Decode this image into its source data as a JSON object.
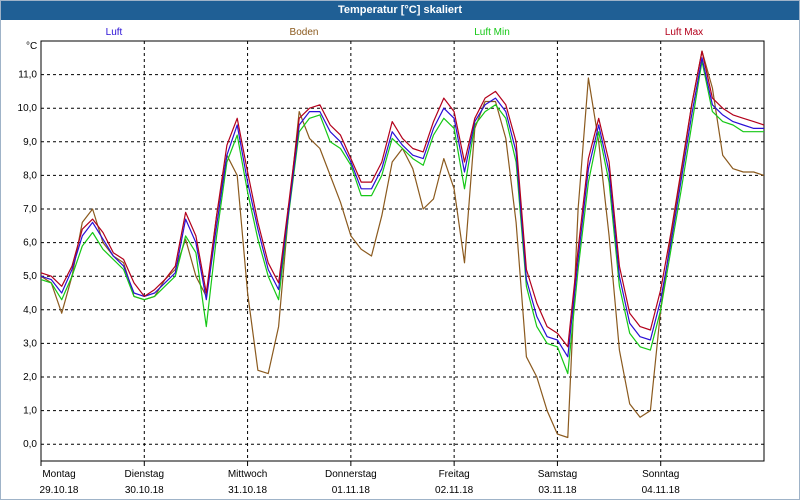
{
  "window": {
    "title": "Temperatur [°C] skaliert"
  },
  "colors": {
    "luft": "#2a0fd6",
    "boden": "#8b5a1e",
    "luft_min": "#16c816",
    "luft_max": "#b3001b",
    "grid": "#000000",
    "title_bg": "#1f5f95"
  },
  "chart_data": {
    "type": "line",
    "title": "Temperatur [°C] skaliert",
    "ylabel": "°C",
    "ylim": [
      -0.5,
      12.0
    ],
    "yticks": [
      0.0,
      1.0,
      2.0,
      3.0,
      4.0,
      5.0,
      6.0,
      7.0,
      8.0,
      9.0,
      10.0,
      11.0
    ],
    "ytick_labels": [
      "0,0",
      "1,0",
      "2,0",
      "3,0",
      "4,0",
      "5,0",
      "6,0",
      "7,0",
      "8,0",
      "9,0",
      "10,0",
      "11,0"
    ],
    "xlim": [
      0,
      7
    ],
    "days": [
      {
        "name": "Montag",
        "date": "29.10.18"
      },
      {
        "name": "Dienstag",
        "date": "30.10.18"
      },
      {
        "name": "Mittwoch",
        "date": "31.10.18"
      },
      {
        "name": "Donnerstag",
        "date": "01.11.18"
      },
      {
        "name": "Freitag",
        "date": "02.11.18"
      },
      {
        "name": "Samstag",
        "date": "03.11.18"
      },
      {
        "name": "Sonntag",
        "date": "04.11.18"
      }
    ],
    "grid": true,
    "legend_position": "top",
    "x": [
      0.0,
      0.1,
      0.2,
      0.3,
      0.4,
      0.5,
      0.6,
      0.7,
      0.8,
      0.9,
      1.0,
      1.1,
      1.2,
      1.3,
      1.4,
      1.5,
      1.6,
      1.7,
      1.8,
      1.9,
      2.0,
      2.1,
      2.2,
      2.3,
      2.4,
      2.5,
      2.6,
      2.7,
      2.8,
      2.9,
      3.0,
      3.1,
      3.2,
      3.3,
      3.4,
      3.5,
      3.6,
      3.7,
      3.8,
      3.9,
      4.0,
      4.1,
      4.2,
      4.3,
      4.4,
      4.5,
      4.6,
      4.7,
      4.8,
      4.9,
      5.0,
      5.1,
      5.2,
      5.3,
      5.4,
      5.5,
      5.6,
      5.7,
      5.8,
      5.9,
      6.0,
      6.1,
      6.2,
      6.3,
      6.4,
      6.5,
      6.6,
      6.7,
      6.8,
      6.9,
      7.0
    ],
    "series": [
      {
        "name": "Luft",
        "values": [
          5.0,
          4.9,
          4.5,
          5.2,
          6.2,
          6.6,
          6.1,
          5.6,
          5.3,
          4.5,
          4.4,
          4.5,
          4.8,
          5.1,
          6.7,
          6.0,
          4.3,
          6.5,
          8.6,
          9.5,
          7.8,
          6.4,
          5.2,
          4.6,
          7.0,
          9.5,
          9.9,
          9.9,
          9.3,
          9.0,
          8.4,
          7.6,
          7.6,
          8.2,
          9.3,
          8.9,
          8.6,
          8.5,
          9.4,
          10.0,
          9.7,
          8.1,
          9.6,
          10.1,
          10.3,
          9.9,
          8.7,
          4.9,
          3.8,
          3.2,
          3.1,
          2.6,
          5.5,
          8.2,
          9.5,
          8.1,
          5.0,
          3.6,
          3.2,
          3.1,
          4.3,
          6.0,
          7.9,
          9.8,
          11.5,
          10.1,
          9.8,
          9.6,
          9.5,
          9.4,
          9.4
        ]
      },
      {
        "name": "Boden",
        "values": [
          5.0,
          4.8,
          3.9,
          5.0,
          6.6,
          7.0,
          6.0,
          5.6,
          5.4,
          4.4,
          4.3,
          4.4,
          4.9,
          5.2,
          6.1,
          5.0,
          4.4,
          6.8,
          8.6,
          8.0,
          4.5,
          2.2,
          2.1,
          3.5,
          7.0,
          9.9,
          9.1,
          8.8,
          8.0,
          7.2,
          6.2,
          5.8,
          5.6,
          6.8,
          8.4,
          8.8,
          8.2,
          7.0,
          7.3,
          8.5,
          7.6,
          5.4,
          9.4,
          10.2,
          10.2,
          9.1,
          6.6,
          2.6,
          2.0,
          1.0,
          0.3,
          0.2,
          7.0,
          10.9,
          9.0,
          6.2,
          2.8,
          1.2,
          0.8,
          1.0,
          4.0,
          6.2,
          8.1,
          10.1,
          11.7,
          10.6,
          8.6,
          8.2,
          8.1,
          8.1,
          8.0
        ]
      },
      {
        "name": "Luft Min",
        "values": [
          4.9,
          4.8,
          4.3,
          5.0,
          5.9,
          6.3,
          5.8,
          5.5,
          5.2,
          4.4,
          4.3,
          4.4,
          4.7,
          5.0,
          6.2,
          5.7,
          3.5,
          6.2,
          8.4,
          9.2,
          7.5,
          6.1,
          5.0,
          4.3,
          6.9,
          9.3,
          9.7,
          9.8,
          9.0,
          8.8,
          8.3,
          7.4,
          7.4,
          8.0,
          9.1,
          8.8,
          8.5,
          8.3,
          9.2,
          9.7,
          9.4,
          7.6,
          9.5,
          9.9,
          10.1,
          9.7,
          8.4,
          4.7,
          3.5,
          3.0,
          2.9,
          2.1,
          5.2,
          7.8,
          9.3,
          7.8,
          4.7,
          3.3,
          2.9,
          2.8,
          4.0,
          5.8,
          7.6,
          9.5,
          11.4,
          9.9,
          9.6,
          9.5,
          9.3,
          9.3,
          9.3
        ]
      },
      {
        "name": "Luft Max",
        "values": [
          5.1,
          5.0,
          4.7,
          5.3,
          6.4,
          6.7,
          6.3,
          5.7,
          5.5,
          4.8,
          4.4,
          4.6,
          4.9,
          5.3,
          6.9,
          6.2,
          4.5,
          6.8,
          8.9,
          9.7,
          8.1,
          6.6,
          5.4,
          4.8,
          7.2,
          9.7,
          10.0,
          10.1,
          9.5,
          9.2,
          8.5,
          7.8,
          7.8,
          8.4,
          9.6,
          9.1,
          8.8,
          8.7,
          9.6,
          10.3,
          9.9,
          8.4,
          9.7,
          10.3,
          10.5,
          10.1,
          9.0,
          5.2,
          4.2,
          3.5,
          3.3,
          2.9,
          5.8,
          8.5,
          9.7,
          8.4,
          5.3,
          3.9,
          3.5,
          3.4,
          4.6,
          6.3,
          8.2,
          10.1,
          11.7,
          10.3,
          10.0,
          9.8,
          9.7,
          9.6,
          9.5
        ]
      }
    ]
  }
}
